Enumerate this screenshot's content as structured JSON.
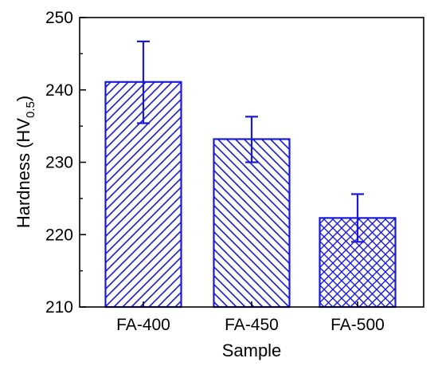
{
  "chart_data": {
    "type": "bar",
    "categories": [
      "FA-400",
      "FA-450",
      "FA-500"
    ],
    "values": [
      241.1,
      233.2,
      222.3
    ],
    "error_bars": [
      {
        "low": 235.4,
        "high": 246.7
      },
      {
        "low": 230.0,
        "high": 236.3
      },
      {
        "low": 219.0,
        "high": 225.6
      }
    ],
    "hatch_patterns": [
      "diagonal",
      "diagonal-reverse",
      "crosshatch"
    ],
    "xlabel": "Sample",
    "ylabel": {
      "base": "Hardness (HV",
      "subscript": "0.5",
      "suffix": ")"
    },
    "ylim": [
      210,
      250
    ],
    "yticks": [
      210,
      220,
      230,
      240,
      250
    ],
    "grid": false,
    "colors": {
      "bar": "#1a1ad6",
      "axis": "#000000"
    }
  }
}
